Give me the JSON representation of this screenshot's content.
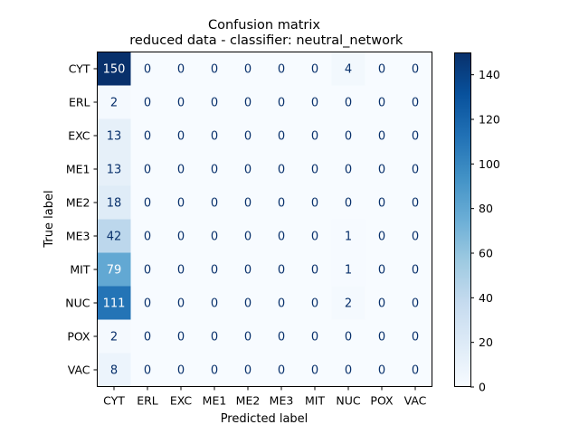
{
  "chart_data": {
    "type": "heatmap",
    "title_line1": "Confusion matrix",
    "title_line2": " reduced data - classifier: neutral_network",
    "xlabel": "Predicted label",
    "ylabel": "True label",
    "x_categories": [
      "CYT",
      "ERL",
      "EXC",
      "ME1",
      "ME2",
      "ME3",
      "MIT",
      "NUC",
      "POX",
      "VAC"
    ],
    "y_categories": [
      "CYT",
      "ERL",
      "EXC",
      "ME1",
      "ME2",
      "ME3",
      "MIT",
      "NUC",
      "POX",
      "VAC"
    ],
    "matrix": [
      [
        150,
        0,
        0,
        0,
        0,
        0,
        0,
        4,
        0,
        0
      ],
      [
        2,
        0,
        0,
        0,
        0,
        0,
        0,
        0,
        0,
        0
      ],
      [
        13,
        0,
        0,
        0,
        0,
        0,
        0,
        0,
        0,
        0
      ],
      [
        13,
        0,
        0,
        0,
        0,
        0,
        0,
        0,
        0,
        0
      ],
      [
        18,
        0,
        0,
        0,
        0,
        0,
        0,
        0,
        0,
        0
      ],
      [
        42,
        0,
        0,
        0,
        0,
        0,
        0,
        1,
        0,
        0
      ],
      [
        79,
        0,
        0,
        0,
        0,
        0,
        0,
        1,
        0,
        0
      ],
      [
        111,
        0,
        0,
        0,
        0,
        0,
        0,
        2,
        0,
        0
      ],
      [
        2,
        0,
        0,
        0,
        0,
        0,
        0,
        0,
        0,
        0
      ],
      [
        8,
        0,
        0,
        0,
        0,
        0,
        0,
        0,
        0,
        0
      ]
    ],
    "colormap": "Blues",
    "vmin": 0,
    "vmax": 150,
    "colorbar_ticks": [
      0,
      20,
      40,
      60,
      80,
      100,
      120,
      140
    ],
    "text_color_light": "#ffffff",
    "text_color_dark": "#08306b",
    "grid": false
  }
}
